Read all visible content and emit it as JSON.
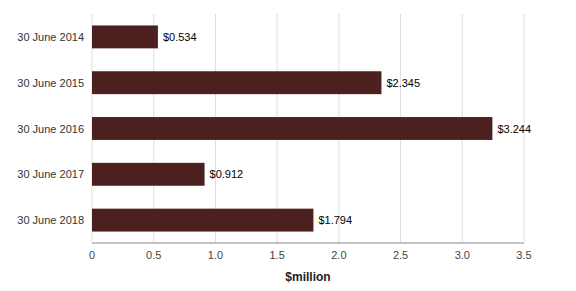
{
  "chart_data": {
    "type": "bar",
    "orientation": "horizontal",
    "categories": [
      "30 June 2014",
      "30 June 2015",
      "30 June 2016",
      "30 June 2017",
      "30 June 2018"
    ],
    "values": [
      0.534,
      2.345,
      3.244,
      0.912,
      1.794
    ],
    "value_labels": [
      "$0.534",
      "$2.345",
      "$3.244",
      "$0.912",
      "$1.794"
    ],
    "data_labels": true,
    "color": "#4d2020",
    "xlabel": "$million",
    "xlim": [
      0,
      3.5
    ],
    "xticks": [
      0,
      0.5,
      {
        "value": 1.0,
        "label": "1.0"
      },
      1.5,
      {
        "value": 2.0,
        "label": "2.0"
      },
      2.5,
      {
        "value": 3.0,
        "label": "3.0"
      },
      3.5
    ],
    "grid": true
  }
}
